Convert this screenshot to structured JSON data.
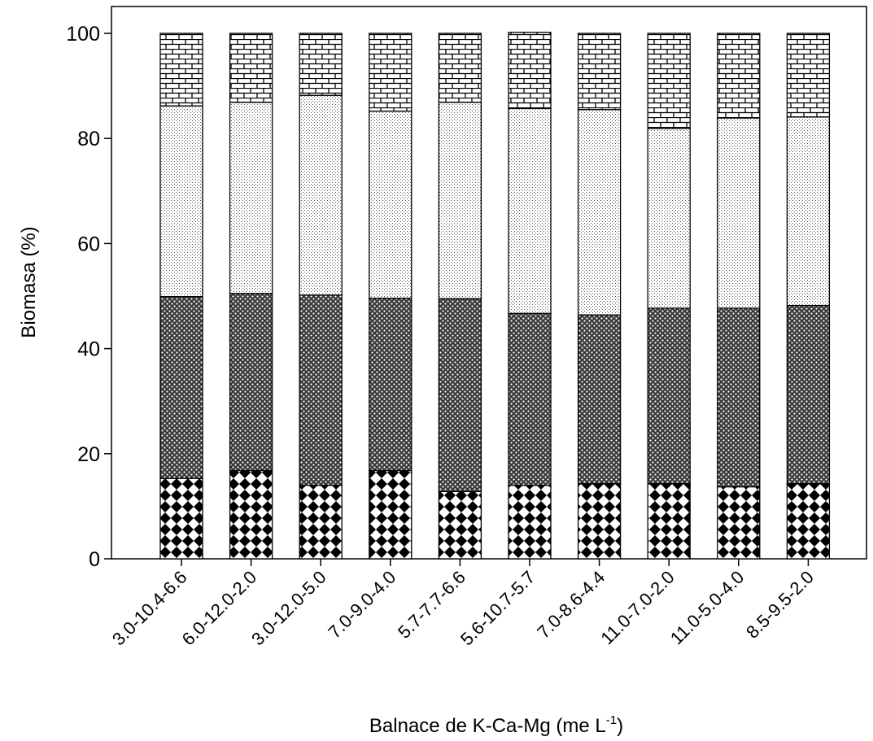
{
  "chart_data": {
    "type": "bar",
    "stacked": true,
    "title": "",
    "xlabel": "Balnace de K-Ca-Mg (me L",
    "xlabel_superscript": "-1",
    "xlabel_suffix": ")",
    "ylabel": "Biomasa (%)",
    "ylim": [
      0,
      105
    ],
    "yticks": [
      0,
      20,
      40,
      60,
      80,
      100
    ],
    "ytick_labels": [
      "0",
      "20",
      "40",
      "60",
      "80",
      "100"
    ],
    "grid": false,
    "legend": "none",
    "categories": [
      "3.0-10.4-6.6",
      "6.0-12.0-2.0",
      "3.0-12.0-5.0",
      "7.0-9.0-4.0",
      "5.7-7.7-6.6",
      "5.6-10.7-5.7",
      "7.0-8.6-4.4",
      "11.0-7.0-2.0",
      "11.0-5.0-4.0",
      "8.5-9.5-2.0"
    ],
    "series": [
      {
        "pattern": "diamond-checker",
        "values": [
          15.3,
          16.8,
          14.0,
          16.8,
          12.8,
          14.0,
          14.3,
          14.3,
          13.7,
          14.3
        ]
      },
      {
        "pattern": "dense-dots",
        "values": [
          34.6,
          33.7,
          36.2,
          32.8,
          36.7,
          32.7,
          32.1,
          33.4,
          34.0,
          33.9
        ]
      },
      {
        "pattern": "fine-dots",
        "values": [
          36.3,
          36.4,
          38.0,
          35.6,
          37.4,
          39.0,
          39.1,
          34.2,
          36.2,
          35.9
        ]
      },
      {
        "pattern": "brick",
        "values": [
          13.8,
          13.1,
          11.8,
          14.8,
          13.1,
          14.5,
          14.5,
          18.1,
          16.1,
          15.9
        ]
      }
    ]
  }
}
